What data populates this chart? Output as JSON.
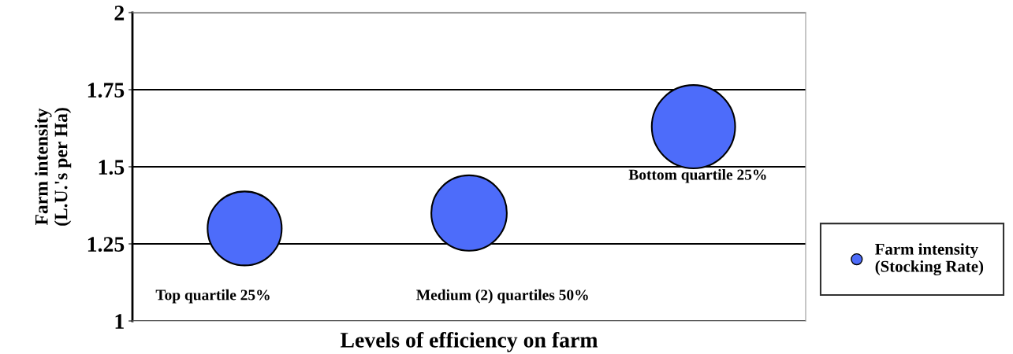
{
  "chart_data": {
    "type": "bubble",
    "xlabel": "Levels of efficiency on farm",
    "ylabel": "Farm intensity\n(L.U.'s per Ha)",
    "categories": [
      null,
      null,
      null
    ],
    "series": [
      {
        "name": "Farm intensity\n(Stocking Rate)",
        "color": "#4d6cfa",
        "values": [
          1.3,
          1.35,
          1.63
        ],
        "sizes": [
          0.79,
          0.82,
          1
        ]
      }
    ],
    "ylim": [
      1,
      2
    ],
    "yticks": [
      1,
      1.25,
      1.5,
      1.75,
      2
    ],
    "grid": "y",
    "legend": "right",
    "marker": "circle",
    "annotations": [
      "Top quartile 25%",
      "Medium (2) quartiles 50%",
      "Bottom quartile 25%"
    ]
  }
}
